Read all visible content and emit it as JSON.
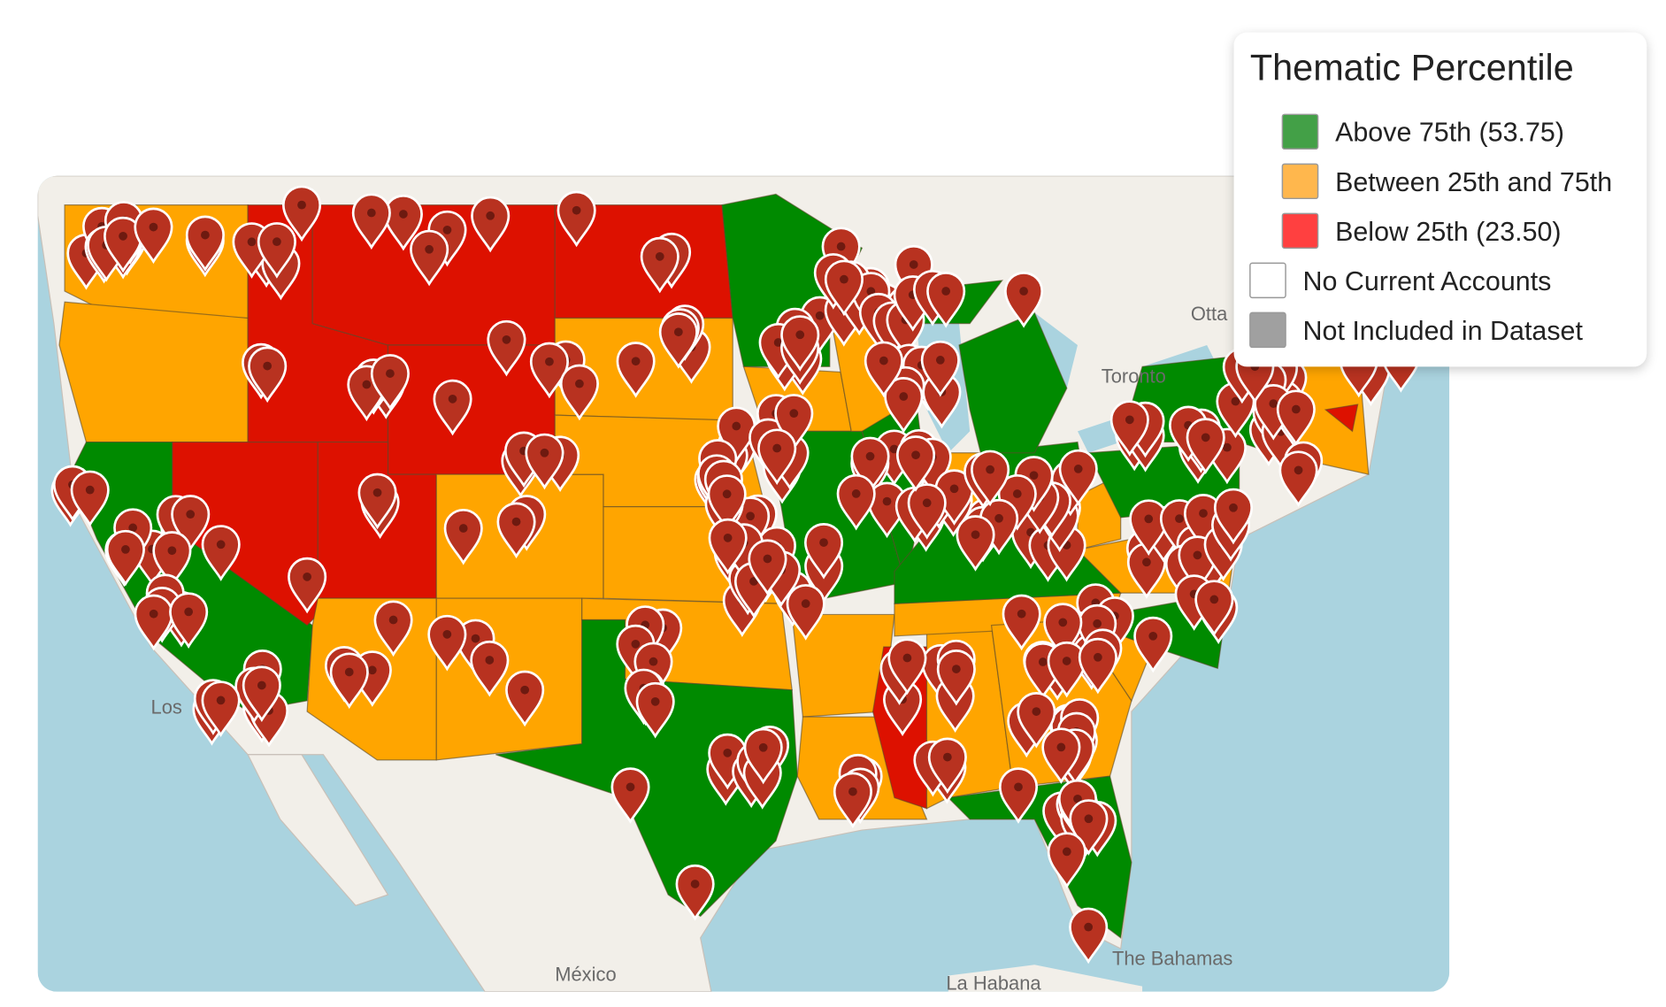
{
  "legend": {
    "title": "Thematic Percentile",
    "items": [
      {
        "label": "Above 75th (53.75)",
        "color": "#43a047"
      },
      {
        "label": "Between 25th and 75th",
        "color": "#ffb74d"
      },
      {
        "label": "Below 25th (23.50)",
        "color": "#ff4040"
      },
      {
        "label": "No Current Accounts",
        "color": "#ffffff"
      },
      {
        "label": "Not Included in Dataset",
        "color": "#a0a0a0"
      }
    ]
  },
  "map_labels": {
    "ottawa": "Otta",
    "toronto": "Toronto",
    "los_angeles": "Los",
    "mexico": "México",
    "la_habana": "La Habana",
    "bahamas": "The Bahamas"
  }
}
